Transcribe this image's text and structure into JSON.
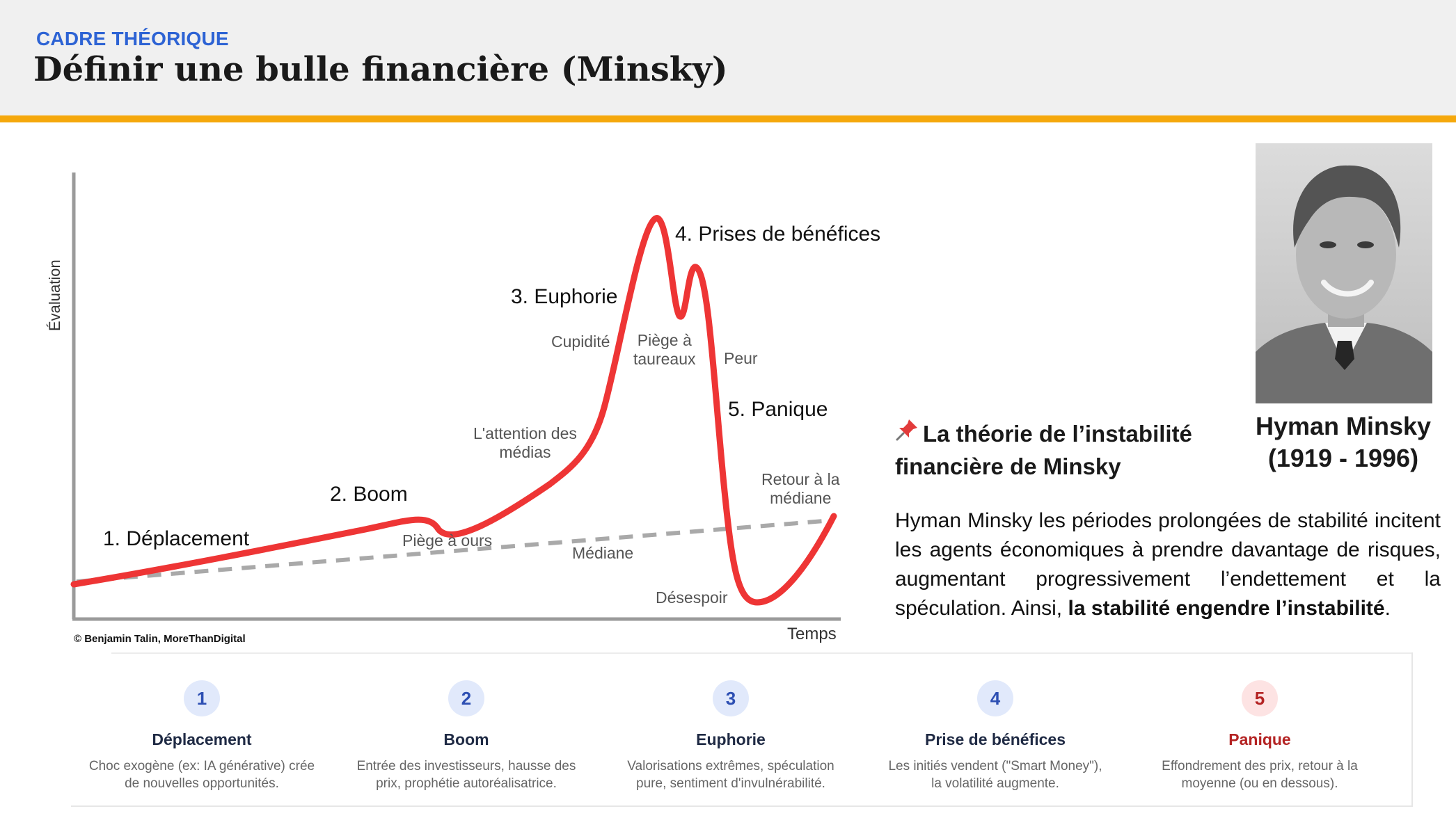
{
  "header": {
    "kicker": "CADRE THÉORIQUE",
    "title": "Définir une bulle financière (Minsky)"
  },
  "chart": {
    "axis_y": "Évaluation",
    "axis_x": "Temps",
    "credit": "© Benjamin Talin, MoreThanDigital",
    "phases": {
      "p1": "1. Déplacement",
      "p2": "2. Boom",
      "p3": "3. Euphorie",
      "p4": "4. Prises de bénéfices",
      "p5": "5. Panique"
    },
    "notes": {
      "cupidite": "Cupidité",
      "piege_taureaux_1": "Piège à",
      "piege_taureaux_2": "taureaux",
      "peur": "Peur",
      "attention_1": "L'attention des",
      "attention_2": "médias",
      "piege_ours": "Piège à ours",
      "mediane": "Médiane",
      "retour_1": "Retour à la",
      "retour_2": "médiane",
      "desespoir": "Désespoir"
    },
    "colors": {
      "curve": "#ee3535",
      "median": "#a9a9a9",
      "axis": "#9a9a9a"
    }
  },
  "person": {
    "photo_alt": "Portrait de Hyman Minsky",
    "name": "Hyman Minsky",
    "dates": "(1919 - 1996)"
  },
  "theory": {
    "pin_icon": "pushpin-icon",
    "title_line1": "La théorie de l’instabilité",
    "title_line2": "financière de Minsky",
    "body": "Hyman Minsky les périodes prolongées de stabilité incitent les agents économiques à prendre davantage de risques, augmentant progressivement l’endettement et la spéculation. Ainsi, ",
    "body_bold": "la stabilité engendre l’instabilité",
    "body_end": "."
  },
  "steps": [
    {
      "num": "1",
      "name": "Déplacement",
      "desc1": "Choc exogène (ex: IA générative) crée",
      "desc2": "de nouvelles opportunités."
    },
    {
      "num": "2",
      "name": "Boom",
      "desc1": "Entrée des investisseurs, hausse des",
      "desc2": "prix, prophétie autoréalisatrice."
    },
    {
      "num": "3",
      "name": "Euphorie",
      "desc1": "Valorisations extrêmes, spéculation",
      "desc2": "pure, sentiment d'invulnérabilité."
    },
    {
      "num": "4",
      "name": "Prise de bénéfices",
      "desc1": "Les initiés vendent (\"Smart Money\"),",
      "desc2": "la volatilité augmente."
    },
    {
      "num": "5",
      "name": "Panique",
      "desc1": "Effondrement des prix, retour à la",
      "desc2": "moyenne (ou en dessous)."
    }
  ]
}
